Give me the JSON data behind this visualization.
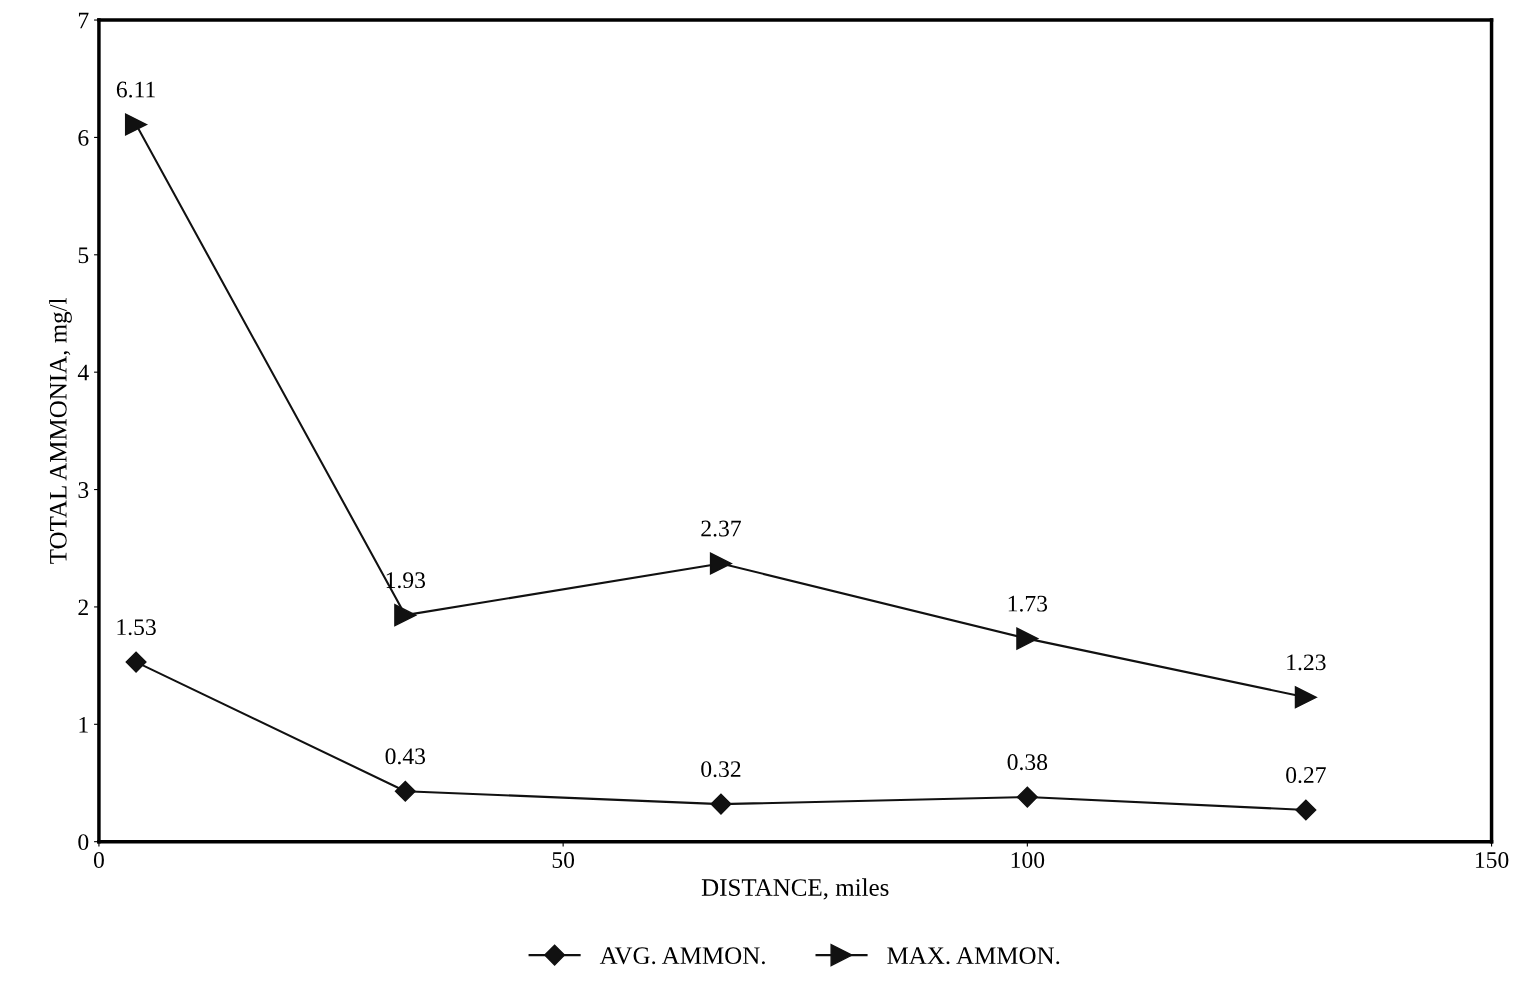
{
  "chart_data": {
    "type": "line",
    "xlabel": "DISTANCE, miles",
    "ylabel": "TOTAL AMMONIA, mg/l",
    "x": [
      4,
      33,
      67,
      100,
      130
    ],
    "series": [
      {
        "name": "AVG. AMMON.",
        "color": "#111111",
        "marker": "diamond",
        "values": [
          1.53,
          0.43,
          0.32,
          0.38,
          0.27
        ]
      },
      {
        "name": "MAX. AMMON.",
        "color": "#111111",
        "marker": "triangle",
        "values": [
          6.11,
          1.93,
          2.37,
          1.73,
          1.23
        ]
      }
    ],
    "xlim": [
      0,
      150
    ],
    "xticks": [
      0,
      50,
      100,
      150
    ],
    "ylim": [
      0,
      7
    ],
    "yticks": [
      0,
      1,
      2,
      3,
      4,
      5,
      6,
      7
    ],
    "data_labels": true,
    "grid": false,
    "legend": "bottom",
    "line_style": "solid"
  }
}
